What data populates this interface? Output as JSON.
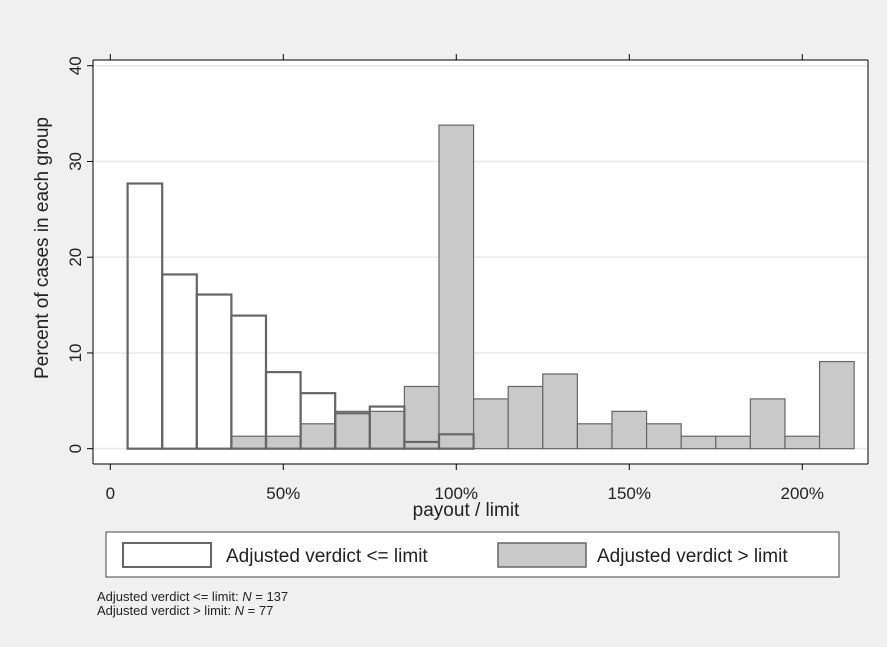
{
  "chart_data": {
    "type": "bar",
    "xlabel": "payout / limit",
    "ylabel": "Percent of cases in each group",
    "xlim": [
      -0.05,
      2.19
    ],
    "ylim": [
      -1.6,
      40.6
    ],
    "x_ticks": [
      {
        "value": 0,
        "label": "0"
      },
      {
        "value": 0.5,
        "label": "50%"
      },
      {
        "value": 1.0,
        "label": "100%"
      },
      {
        "value": 1.5,
        "label": "150%"
      },
      {
        "value": 2.0,
        "label": "200%"
      }
    ],
    "y_ticks": [
      {
        "value": 0,
        "label": "0"
      },
      {
        "value": 10,
        "label": "10"
      },
      {
        "value": 20,
        "label": "20"
      },
      {
        "value": 30,
        "label": "30"
      },
      {
        "value": 40,
        "label": "40"
      }
    ],
    "bin_width": 0.1,
    "grid": true,
    "legend_position": "bottom",
    "series": [
      {
        "name": "Adjusted verdict <= limit",
        "fill": "#ffffff",
        "stroke": "#666666",
        "bin_centers": [
          0.1,
          0.2,
          0.3,
          0.4,
          0.5,
          0.6,
          0.7,
          0.8,
          0.9,
          1.0
        ],
        "values": [
          27.7,
          18.2,
          16.1,
          13.9,
          8.0,
          5.8,
          3.7,
          4.4,
          0.7,
          1.5
        ]
      },
      {
        "name": "Adjusted verdict > limit",
        "fill": "#c9c9c9",
        "stroke": "#666666",
        "bin_centers": [
          0.4,
          0.5,
          0.6,
          0.7,
          0.8,
          0.9,
          1.0,
          1.1,
          1.2,
          1.3,
          1.4,
          1.5,
          1.6,
          1.7,
          1.8,
          1.9,
          2.0,
          2.1
        ],
        "values": [
          1.3,
          1.3,
          2.6,
          3.9,
          3.9,
          6.5,
          33.8,
          5.2,
          6.5,
          7.8,
          2.6,
          3.9,
          2.6,
          1.3,
          1.3,
          5.2,
          1.3,
          9.1
        ]
      }
    ]
  },
  "notes": {
    "line1_prefix": "Adjusted verdict <= limit: ",
    "line1_var": "N",
    "line1_suffix": " = 137",
    "line2_prefix": "Adjusted verdict > limit: ",
    "line2_var": "N",
    "line2_suffix": " = 77"
  }
}
